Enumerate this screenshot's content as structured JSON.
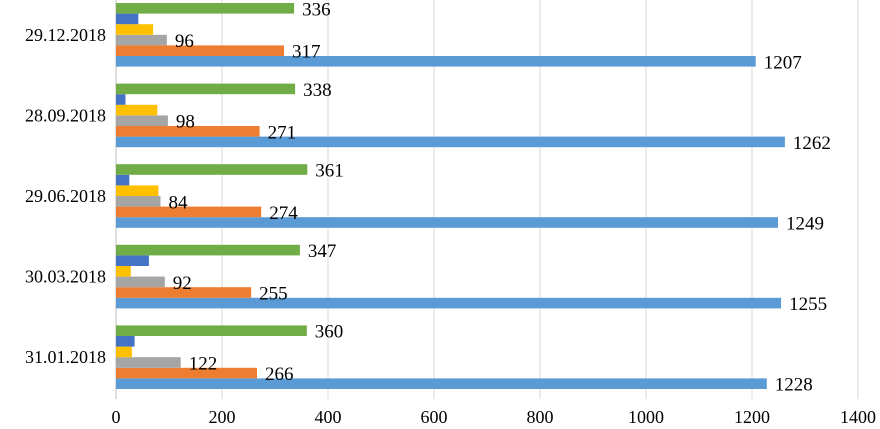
{
  "chart_data": {
    "type": "bar",
    "orientation": "horizontal",
    "categories": [
      "31.01.2018",
      "30.03.2018",
      "29.06.2018",
      "28.09.2018",
      "29.12.2018"
    ],
    "series": [
      {
        "color": "#5b9bd5",
        "values": [
          1228,
          1255,
          1249,
          1262,
          1207
        ],
        "labeled": true
      },
      {
        "color": "#ed7d31",
        "values": [
          266,
          255,
          274,
          271,
          317
        ],
        "labeled": true
      },
      {
        "color": "#a5a5a5",
        "values": [
          122,
          92,
          84,
          98,
          96
        ],
        "labeled": true
      },
      {
        "color": "#ffc000",
        "values": [
          30,
          28,
          80,
          78,
          70
        ],
        "labeled": false
      },
      {
        "color": "#4472c4",
        "values": [
          35,
          62,
          25,
          18,
          42
        ],
        "labeled": false
      },
      {
        "color": "#70ad47",
        "values": [
          360,
          347,
          361,
          338,
          336
        ],
        "labeled": true
      }
    ],
    "xlim": [
      0,
      1400
    ],
    "xticks": [
      0,
      200,
      400,
      600,
      800,
      1000,
      1200,
      1400
    ],
    "grid": true,
    "legend": "none"
  }
}
